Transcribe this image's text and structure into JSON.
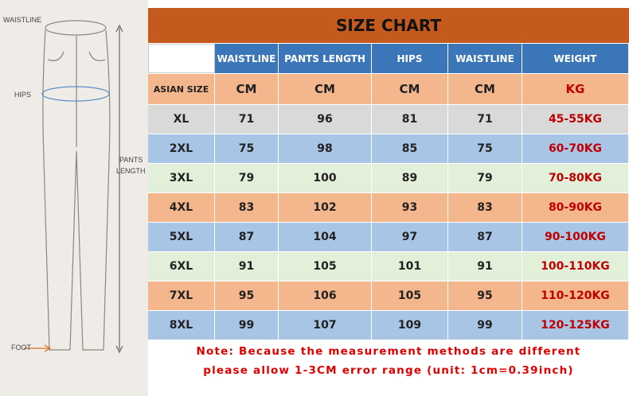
{
  "diagram": {
    "waistline": "WAISTLINE",
    "hips": "HIPS",
    "pants": "PANTS",
    "length": "LENGTH",
    "foot": "FOOT"
  },
  "table": {
    "title": "SIZE CHART",
    "header": [
      "WAISTLINE",
      "PANTS LENGTH",
      "HIPS",
      "WAISTLINE",
      "WEIGHT"
    ],
    "units": [
      "ASIAN SIZE",
      "CM",
      "CM",
      "CM",
      "CM",
      "KG"
    ],
    "rows": [
      [
        "XL",
        71,
        96,
        81,
        71,
        "45-55KG"
      ],
      [
        "2XL",
        75,
        98,
        85,
        75,
        "60-70KG"
      ],
      [
        "3XL",
        79,
        100,
        89,
        79,
        "70-80KG"
      ],
      [
        "4XL",
        83,
        102,
        93,
        83,
        "80-90KG"
      ],
      [
        "5XL",
        87,
        104,
        97,
        87,
        "90-100KG"
      ],
      [
        "6XL",
        91,
        105,
        101,
        91,
        "100-110KG"
      ],
      [
        "7XL",
        95,
        106,
        105,
        95,
        "110-120KG"
      ],
      [
        "8XL",
        99,
        107,
        109,
        99,
        "120-125KG"
      ]
    ]
  },
  "note": [
    "Note: Because the measurement methods are different",
    "please allow 1-3CM error range (unit: 1cm=0.39inch)"
  ]
}
